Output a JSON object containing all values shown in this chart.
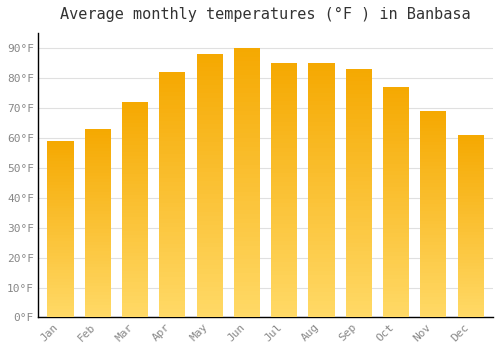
{
  "title": "Average monthly temperatures (°F ) in Banbasa",
  "months": [
    "Jan",
    "Feb",
    "Mar",
    "Apr",
    "May",
    "Jun",
    "Jul",
    "Aug",
    "Sep",
    "Oct",
    "Nov",
    "Dec"
  ],
  "values": [
    59,
    63,
    72,
    82,
    88,
    90,
    85,
    85,
    83,
    77,
    69,
    61
  ],
  "bar_color_top": "#F5A800",
  "bar_color_bottom": "#FFD966",
  "background_color": "#ffffff",
  "plot_bg_color": "#ffffff",
  "yticks": [
    0,
    10,
    20,
    30,
    40,
    50,
    60,
    70,
    80,
    90
  ],
  "ylim": [
    0,
    95
  ],
  "grid_color": "#e0e0e0",
  "tick_label_color": "#888888",
  "title_color": "#333333",
  "title_fontsize": 11,
  "bar_width": 0.7,
  "gradient_steps": 60
}
